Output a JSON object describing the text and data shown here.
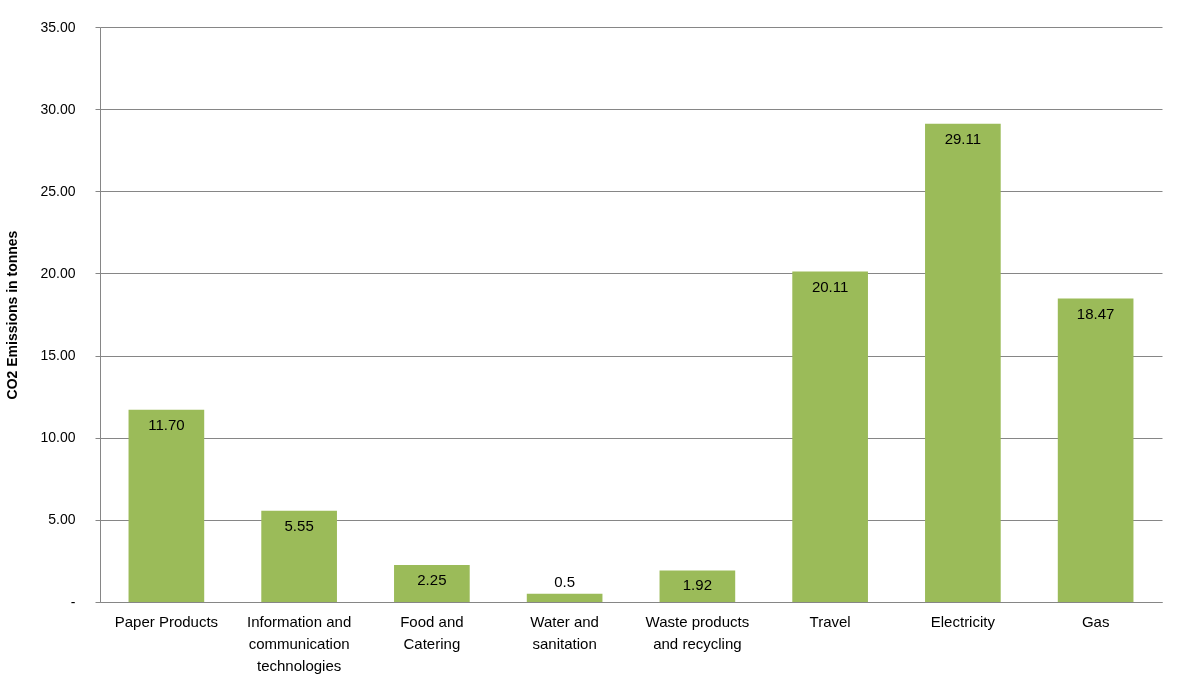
{
  "chart_data": {
    "type": "bar",
    "ylabel": "CO2 Emissions  in tonnes",
    "categories": [
      "Paper  Products",
      "Information and communication technologies",
      "Food and Catering",
      "Water and sanitation",
      "Waste products and recycling",
      "Travel",
      "Electricity",
      "Gas"
    ],
    "values": [
      11.7,
      5.55,
      2.25,
      0.5,
      1.92,
      20.11,
      29.11,
      18.47
    ],
    "value_labels": [
      "11.70",
      "5.55",
      "2.25",
      "0.5",
      "1.92",
      "20.11",
      "29.11",
      "18.47"
    ],
    "color": "#9bbb59",
    "ylim": [
      0,
      35
    ],
    "yticks": [
      {
        "value": 0,
        "label": "-"
      },
      {
        "value": 5,
        "label": "5.00"
      },
      {
        "value": 10,
        "label": "10.00"
      },
      {
        "value": 15,
        "label": "15.00"
      },
      {
        "value": 20,
        "label": "20.00"
      },
      {
        "value": 25,
        "label": "25.00"
      },
      {
        "value": 30,
        "label": "30.00"
      },
      {
        "value": 35,
        "label": "35.00"
      }
    ],
    "grid": "y"
  }
}
